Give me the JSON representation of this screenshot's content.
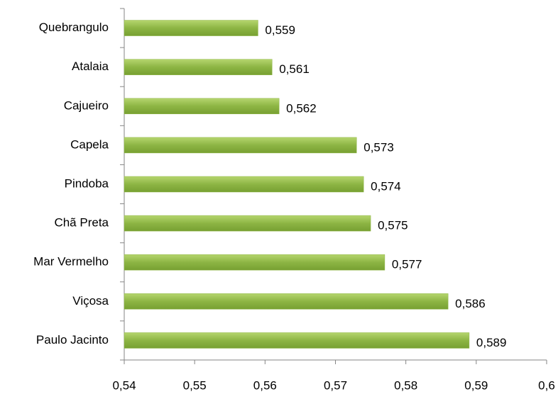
{
  "chart_data": {
    "type": "bar",
    "orientation": "horizontal",
    "categories": [
      "Quebrangulo",
      "Atalaia",
      "Cajueiro",
      "Capela",
      "Pindoba",
      "Chã Preta",
      "Mar Vermelho",
      "Viçosa",
      "Paulo Jacinto"
    ],
    "values": [
      0.559,
      0.561,
      0.562,
      0.573,
      0.574,
      0.575,
      0.577,
      0.586,
      0.589
    ],
    "value_labels": [
      "0,559",
      "0,561",
      "0,562",
      "0,573",
      "0,574",
      "0,575",
      "0,577",
      "0,586",
      "0,589"
    ],
    "color": "#8db544",
    "xlim": [
      0.54,
      0.6
    ],
    "xticks": [
      {
        "value": 0.54,
        "label": "0,54"
      },
      {
        "value": 0.55,
        "label": "0,55"
      },
      {
        "value": 0.56,
        "label": "0,56"
      },
      {
        "value": 0.57,
        "label": "0,57"
      },
      {
        "value": 0.58,
        "label": "0,58"
      },
      {
        "value": 0.59,
        "label": "0,59"
      },
      {
        "value": 0.6,
        "label": "0,6"
      }
    ],
    "grid": false
  }
}
